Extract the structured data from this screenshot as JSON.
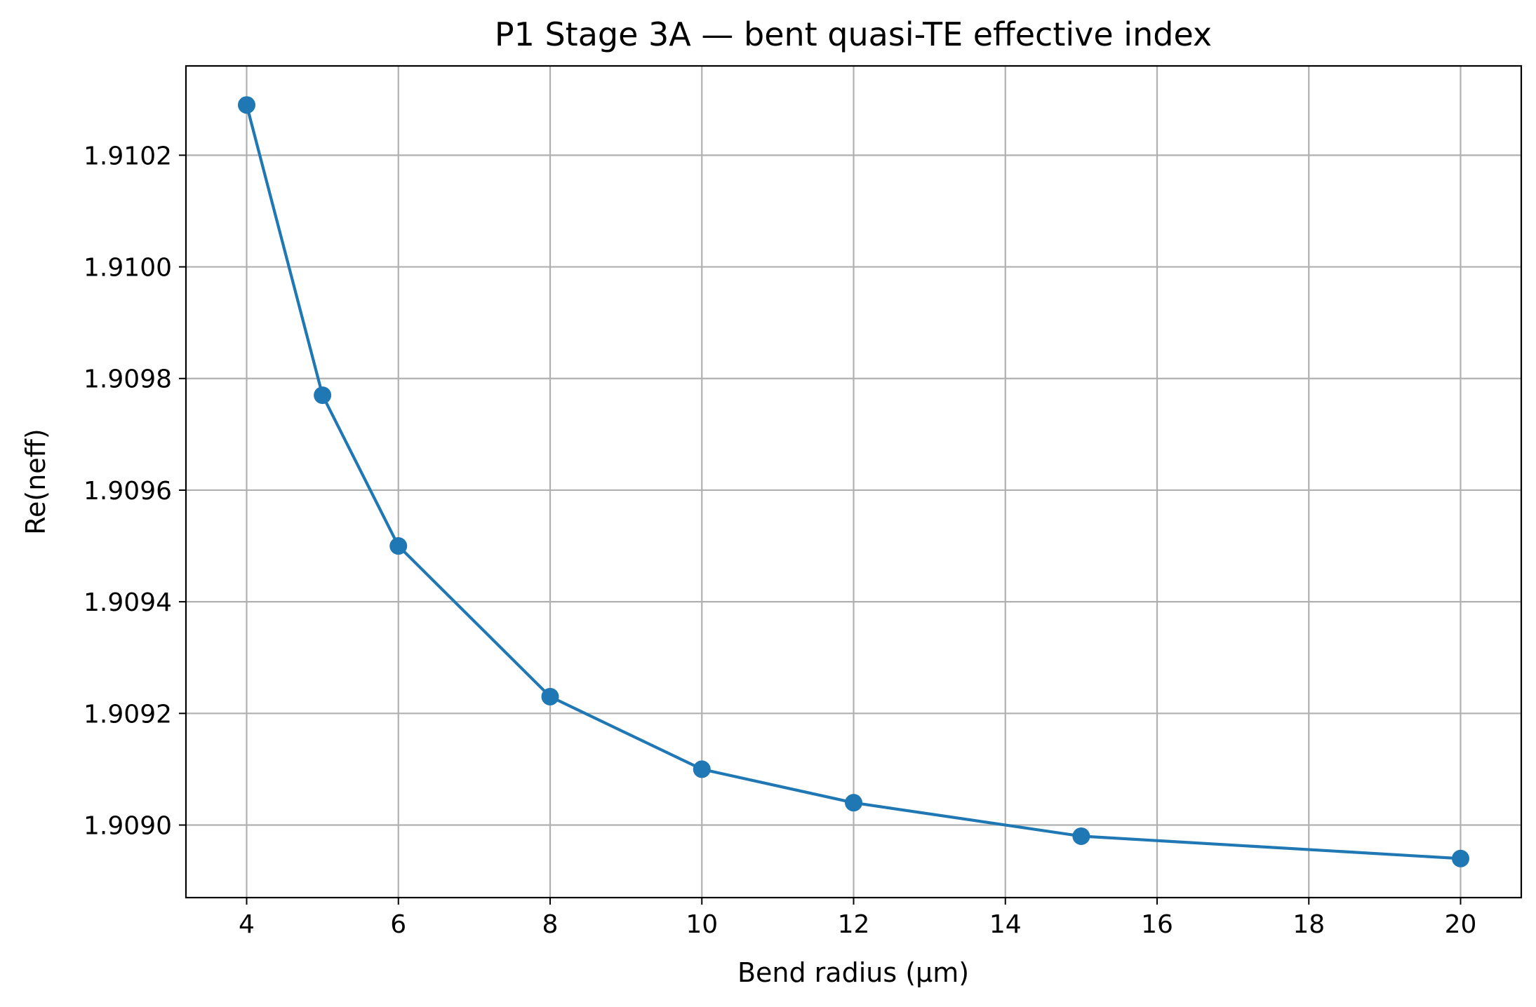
{
  "chart_data": {
    "type": "line",
    "title": "P1 Stage 3A — bent quasi-TE effective index",
    "xlabel": "Bend radius (µm)",
    "ylabel": "Re(neff)",
    "xlim": [
      3.2,
      20.8
    ],
    "ylim": [
      1.90887,
      1.91036
    ],
    "xticks": [
      4,
      6,
      8,
      10,
      12,
      14,
      16,
      18,
      20
    ],
    "yticks": [
      1.909,
      1.9092,
      1.9094,
      1.9096,
      1.9098,
      1.91,
      1.9102
    ],
    "ytick_labels": [
      "1.9090",
      "1.9092",
      "1.9094",
      "1.9096",
      "1.9098",
      "1.9100",
      "1.9102"
    ],
    "grid": true,
    "series": [
      {
        "color": "#1f77b4",
        "marker": "circle",
        "x": [
          4,
          5,
          6,
          8,
          10,
          12,
          15,
          20
        ],
        "y": [
          1.91029,
          1.90977,
          1.9095,
          1.90923,
          1.9091,
          1.90904,
          1.90898,
          1.90894
        ]
      }
    ]
  }
}
